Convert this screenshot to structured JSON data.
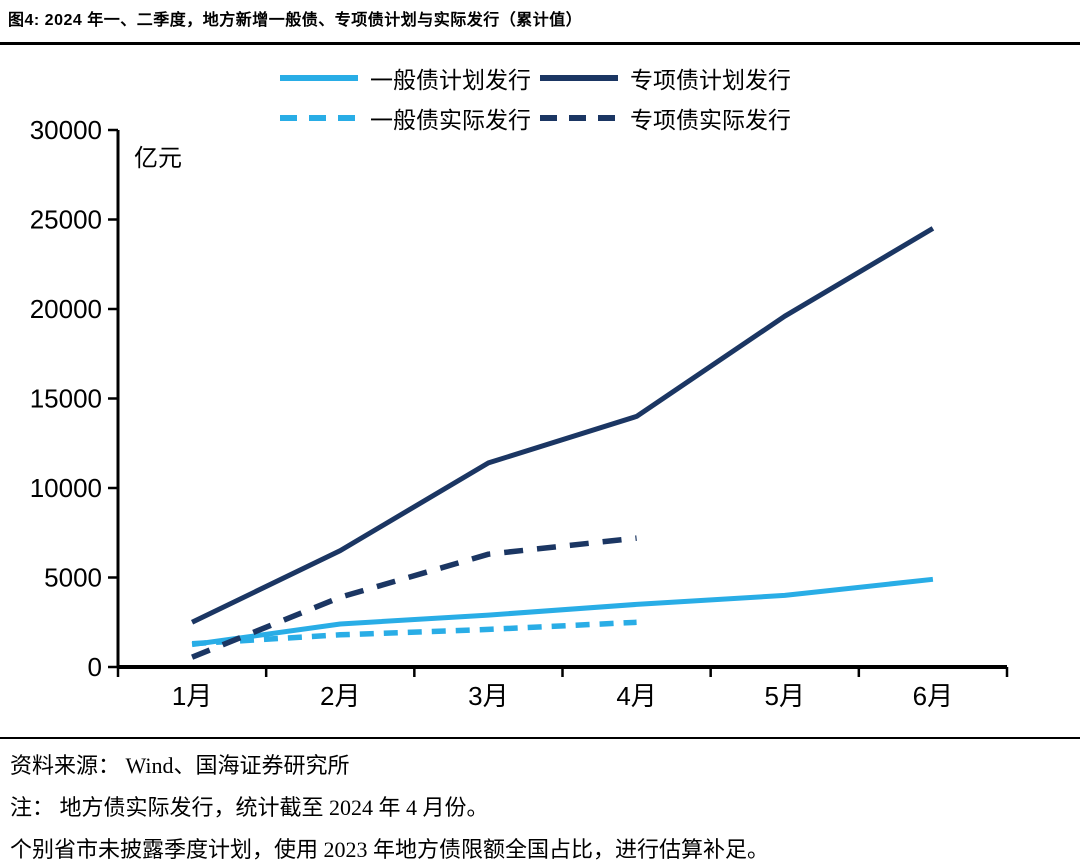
{
  "title": "图4:  2024 年一、二季度，地方新增一般债、专项债计划与实际发行（累计值）",
  "colors": {
    "cyan": "#29ADE6",
    "navy": "#1B3663",
    "axis": "#000000"
  },
  "chart_data": {
    "type": "line",
    "title": "2024 年一、二季度，地方新增一般债、专项债计划与实际发行（累计值）",
    "unit_label": "亿元",
    "categories": [
      "1月",
      "2月",
      "3月",
      "4月",
      "5月",
      "6月"
    ],
    "xlabel": "",
    "ylabel": "亿元",
    "ylim": [
      0,
      30000
    ],
    "ytick_step": 5000,
    "yticks": [
      0,
      5000,
      10000,
      15000,
      20000,
      25000,
      30000
    ],
    "grid": false,
    "legend_position": "top",
    "series": [
      {
        "name": "一般债计划发行",
        "style": "solid",
        "color": "#29ADE6",
        "values": [
          1250,
          2400,
          2900,
          3500,
          4000,
          4900
        ]
      },
      {
        "name": "专项债计划发行",
        "style": "solid",
        "color": "#1B3663",
        "values": [
          2500,
          6500,
          11400,
          14000,
          19600,
          24500
        ]
      },
      {
        "name": "一般债实际发行",
        "style": "dashed",
        "color": "#29ADE6",
        "values": [
          1300,
          1800,
          2100,
          2500,
          null,
          null
        ]
      },
      {
        "name": "专项债实际发行",
        "style": "dashed",
        "color": "#1B3663",
        "values": [
          550,
          3900,
          6300,
          7200,
          null,
          null
        ]
      }
    ]
  },
  "footer": {
    "source": "资料来源： Wind、国海证券研究所",
    "note1": "注： 地方债实际发行，统计截至 2024 年 4 月份。",
    "note2": "个别省市未披露季度计划，使用 2023 年地方债限额全国占比，进行估算补足。"
  }
}
